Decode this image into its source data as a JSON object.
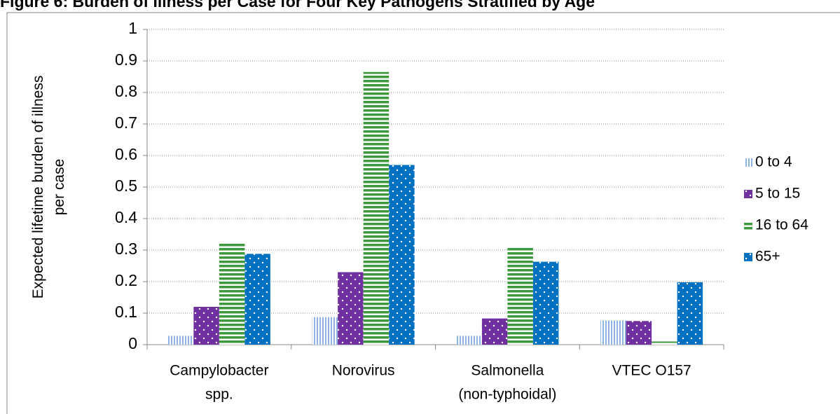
{
  "chart_data": {
    "type": "bar",
    "title": "Figure 6: Burden of Illness per Case for Four Key Pathogens Stratified by Age",
    "ylabel": [
      "Expected lifetime burden of illness",
      "per case"
    ],
    "categories": [
      [
        "Campylobacter",
        "spp."
      ],
      [
        "Norovirus"
      ],
      [
        "Salmonella",
        "(non-typhoidal)"
      ],
      [
        "VTEC O157"
      ]
    ],
    "series": [
      {
        "name": "0 to 4",
        "color": "#8db3e2",
        "pattern": "vertical-stripes",
        "values": [
          0.028,
          0.087,
          0.028,
          0.077
        ]
      },
      {
        "name": "5 to 15",
        "color": "#7030a0",
        "pattern": "dots",
        "values": [
          0.12,
          0.23,
          0.083,
          0.075
        ]
      },
      {
        "name": "16 to 64",
        "color": "#3c9a3c",
        "pattern": "horizontal-stripes",
        "values": [
          0.32,
          0.865,
          0.312,
          0.01
        ]
      },
      {
        "name": "65+",
        "color": "#0070c0",
        "pattern": "dots",
        "values": [
          0.288,
          0.57,
          0.263,
          0.198
        ]
      }
    ],
    "ylim": [
      0,
      1
    ],
    "yticks": [
      0,
      0.1,
      0.2,
      0.3,
      0.4,
      0.5,
      0.6,
      0.7,
      0.8,
      0.9,
      1
    ],
    "grid": true,
    "legend": "right"
  }
}
